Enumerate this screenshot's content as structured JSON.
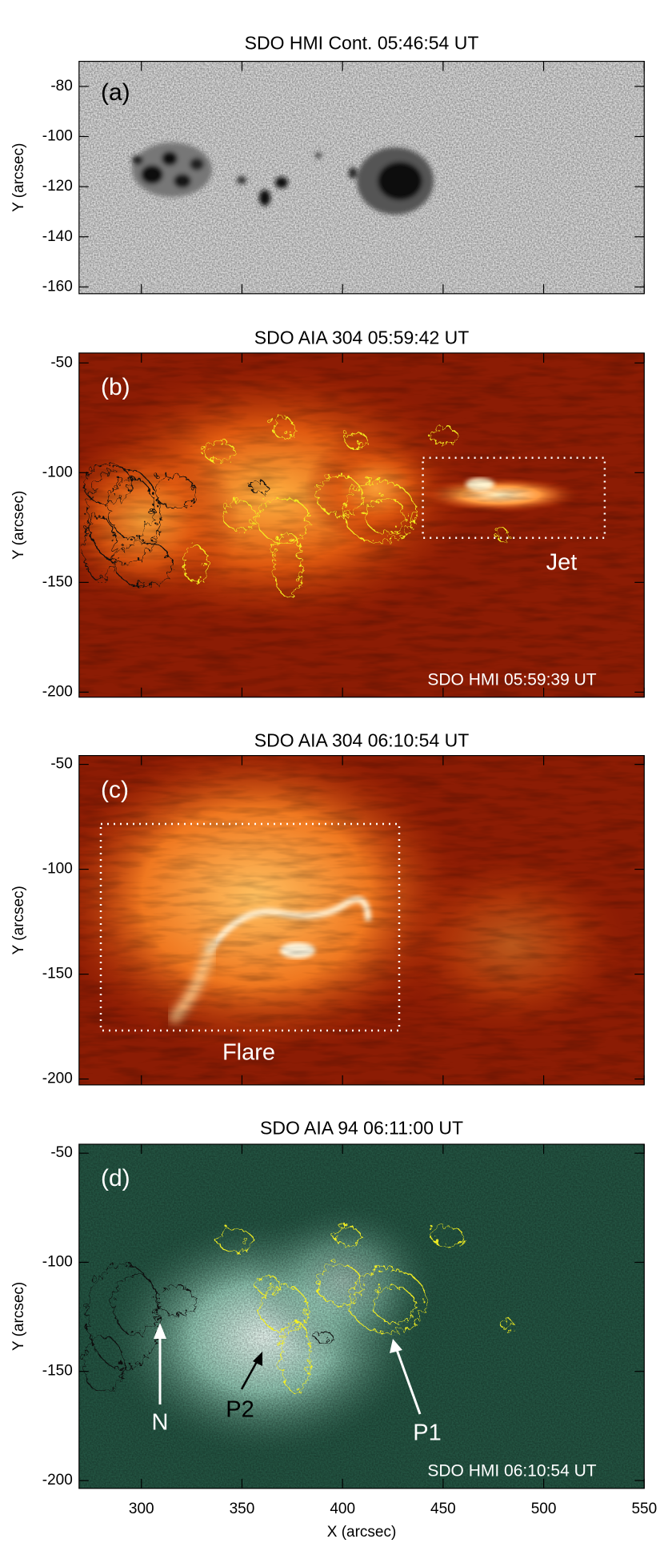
{
  "chart_data": [
    {
      "type": "image",
      "title": "SDO HMI Cont. 05:46:54 UT",
      "ylabel": "Y (arcsec)",
      "panel_label": "(a)",
      "ylim": [
        -162.7,
        -70
      ],
      "yticks": [
        -80,
        -100,
        -120,
        -140,
        -160
      ],
      "annotations": []
    },
    {
      "type": "image",
      "title": "SDO AIA 304 05:59:42 UT",
      "ylabel": "Y (arcsec)",
      "panel_label": "(b)",
      "ylim": [
        -202.3,
        -45.5
      ],
      "yticks": [
        -50,
        -100,
        -150,
        -200
      ],
      "annotations": [
        "Jet",
        "SDO HMI 05:59:39 UT"
      ]
    },
    {
      "type": "image",
      "title": "SDO AIA 304 06:10:54 UT",
      "ylabel": "Y (arcsec)",
      "panel_label": "(c)",
      "ylim": [
        -202.8,
        -45.8
      ],
      "yticks": [
        -50,
        -100,
        -150,
        -200
      ],
      "annotations": [
        "Flare"
      ]
    },
    {
      "type": "image",
      "title": "SDO AIA 94 06:11:00 UT",
      "ylabel": "Y (arcsec)",
      "panel_label": "(d)",
      "ylim": [
        -203.6,
        -45.9
      ],
      "yticks": [
        -50,
        -100,
        -150,
        -200
      ],
      "xlabel": "X (arcsec)",
      "xlim": [
        269,
        550
      ],
      "xticks": [
        300,
        350,
        400,
        450,
        500,
        550
      ],
      "annotations": [
        "N",
        "P2",
        "P1",
        "SDO HMI 06:10:54 UT"
      ]
    }
  ]
}
